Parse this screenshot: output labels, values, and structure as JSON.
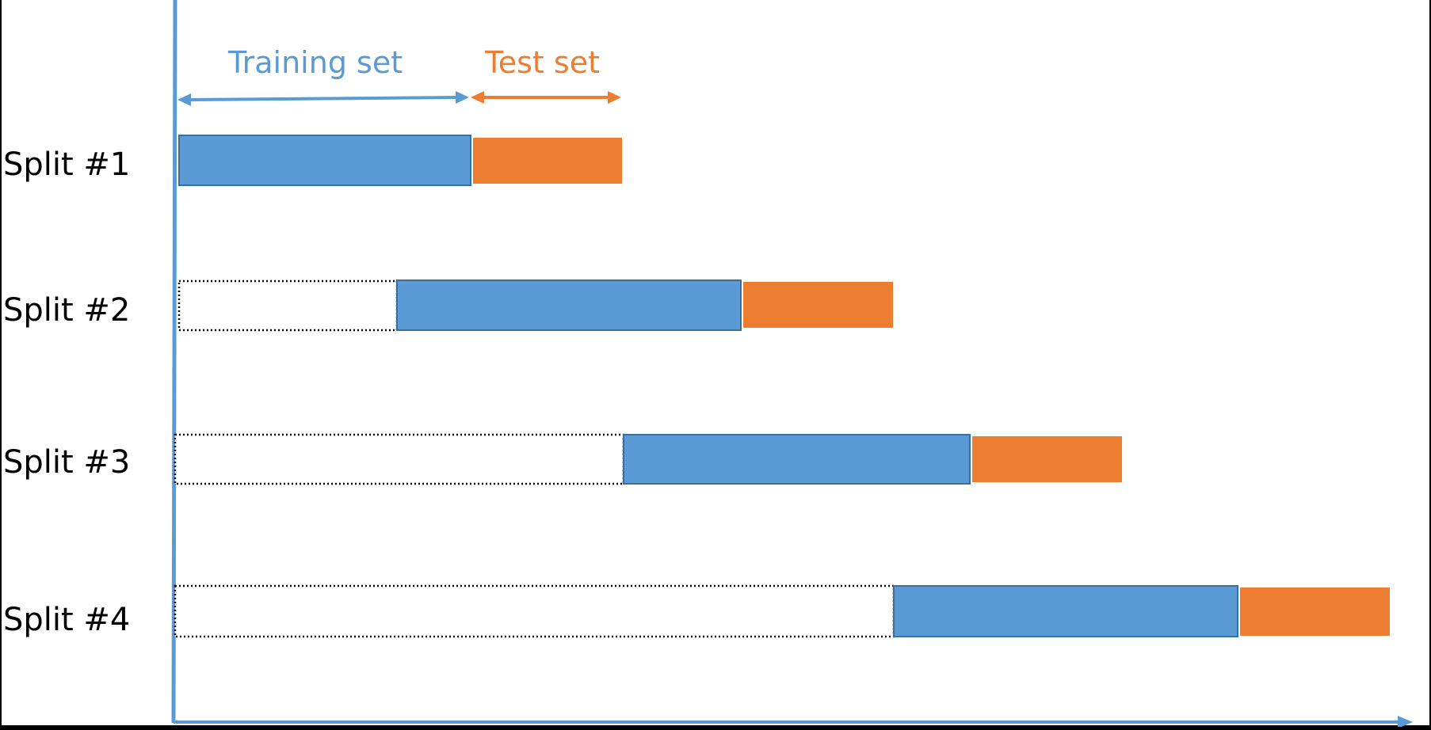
{
  "header": {
    "training_label": "Training set",
    "test_label": "Test set"
  },
  "splits": [
    {
      "label": "Split #1"
    },
    {
      "label": "Split #2"
    },
    {
      "label": "Split #3"
    },
    {
      "label": "Split #4"
    }
  ],
  "colors": {
    "training": "#5b9bd5",
    "test": "#ed7d31",
    "axis": "#5b9bd5",
    "unused_border": "#000000",
    "background": "#ffffff"
  }
}
